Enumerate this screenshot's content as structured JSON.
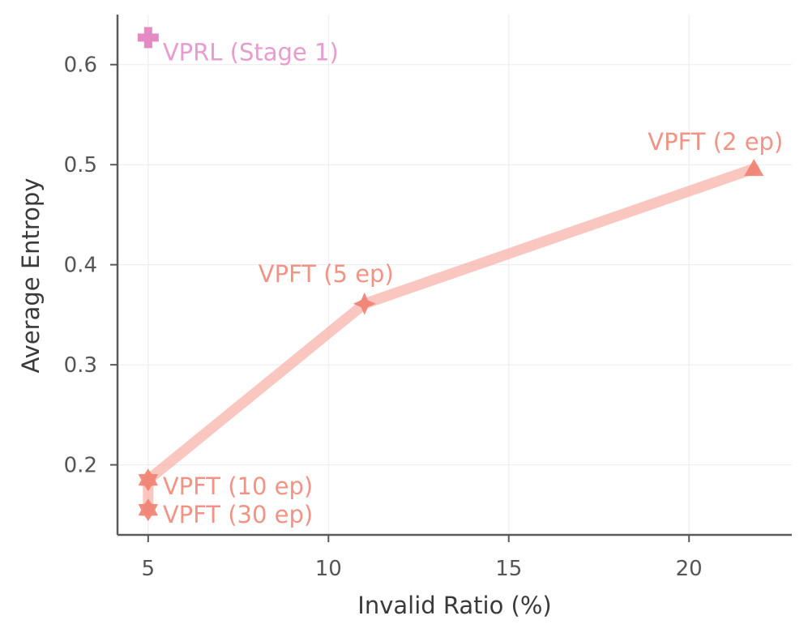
{
  "chart_data": {
    "type": "scatter",
    "title": "",
    "xlabel": "Invalid Ratio (%)",
    "ylabel": "Average Entropy",
    "xlim": [
      4.15,
      22.85
    ],
    "ylim": [
      0.13,
      0.65
    ],
    "xticks": [
      5,
      10,
      15,
      20
    ],
    "yticks": [
      0.2,
      0.3,
      0.4,
      0.5,
      0.6
    ],
    "xtick_labels": [
      "5",
      "10",
      "15",
      "20"
    ],
    "ytick_labels": [
      "0.2",
      "0.3",
      "0.4",
      "0.5",
      "0.6"
    ],
    "grid": true,
    "series": [
      {
        "name": "VPFT",
        "color": "#f08070",
        "line_color": "#f7b3ab",
        "connected": true,
        "points": [
          {
            "x": 5.0,
            "y": 0.155,
            "label": "VPFT (30 ep)",
            "marker": "hexagram"
          },
          {
            "x": 5.0,
            "y": 0.185,
            "label": "VPFT (10 ep)",
            "marker": "hexagram"
          },
          {
            "x": 11.0,
            "y": 0.361,
            "label": "VPFT (5 ep)",
            "marker": "diamond-star"
          },
          {
            "x": 21.8,
            "y": 0.496,
            "label": "VPFT (2 ep)",
            "marker": "triangle"
          }
        ]
      },
      {
        "name": "VPRL",
        "color": "#e48bc6",
        "connected": false,
        "points": [
          {
            "x": 5.0,
            "y": 0.627,
            "label": "VPRL (Stage 1)",
            "marker": "plus"
          }
        ]
      }
    ]
  }
}
